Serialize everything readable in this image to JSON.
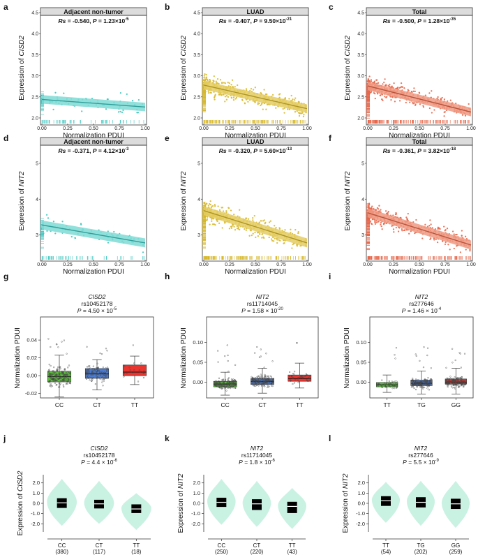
{
  "figure": {
    "title": ""
  },
  "colors": {
    "teal": "#3cc7c0",
    "teal_band": "#7fdad5",
    "gold": "#d8b92c",
    "gold_band": "#e4cc63",
    "salmon": "#e8674a",
    "salmon_band": "#ef9a82",
    "green_box": "#5bbf3c",
    "blue_box": "#4a7bd0",
    "red_box": "#e8352f",
    "violin": "#c9f2e3",
    "strip_bg": "#dcdcdc"
  },
  "chart_data": [
    {
      "id": "a",
      "panel_label": "a",
      "type": "scatter",
      "title": "Adjacent non-tumor",
      "stat": "Rs = -0.540, P = 1.23×10-5",
      "xlabel": "Normalization PDUI",
      "ylabel": "Expression of CISD2",
      "xlim": [
        0,
        1
      ],
      "ylim": [
        1.9,
        4.6
      ],
      "xticks": [
        "0.00",
        "0.25",
        "0.50",
        "0.75",
        "1.00"
      ],
      "yticks": [
        "2.0",
        "2.5",
        "3.0",
        "3.5",
        "4.0",
        "4.5"
      ],
      "n_points": 58,
      "trend": {
        "x": [
          0,
          1
        ],
        "y": [
          2.44,
          2.26
        ]
      },
      "color": "teal"
    },
    {
      "id": "b",
      "panel_label": "b",
      "type": "scatter",
      "title": "LUAD",
      "stat": "Rs = -0.407, P = 9.50×10-21",
      "xlabel": "Normalization PDUI",
      "ylabel": "Expression of CISD2",
      "xlim": [
        0,
        1
      ],
      "ylim": [
        1.9,
        4.6
      ],
      "xticks": [
        "0.00",
        "0.25",
        "0.50",
        "0.75",
        "1.00"
      ],
      "yticks": [
        "2.0",
        "2.5",
        "3.0",
        "3.5",
        "4.0",
        "4.5"
      ],
      "n_points": 515,
      "trend": {
        "x": [
          0,
          1
        ],
        "y": [
          2.78,
          2.22
        ]
      },
      "color": "gold"
    },
    {
      "id": "c",
      "panel_label": "c",
      "type": "scatter",
      "title": "Total",
      "stat": "Rs = -0.500, P = 1.28×10-35",
      "xlabel": "Normalization PDUI",
      "ylabel": "Expression of CISD2",
      "xlim": [
        0,
        1
      ],
      "ylim": [
        1.9,
        4.6
      ],
      "xticks": [
        "0.00",
        "0.25",
        "0.50",
        "0.75",
        "1.00"
      ],
      "yticks": [
        "2.0",
        "2.5",
        "3.0",
        "3.5",
        "4.0",
        "4.5"
      ],
      "n_points": 573,
      "trend": {
        "x": [
          0,
          1
        ],
        "y": [
          2.76,
          2.14
        ]
      },
      "color": "salmon"
    },
    {
      "id": "d",
      "panel_label": "d",
      "type": "scatter",
      "title": "Adjacent non-tumor",
      "stat": "Rs = -0.371, P = 4.12×10-3",
      "xlabel": "Normalization PDUI",
      "ylabel": "Expression of NIT2",
      "xlim": [
        0,
        1
      ],
      "ylim": [
        2.35,
        5.7
      ],
      "xticks": [
        "0.00",
        "0.25",
        "0.50",
        "0.75",
        "1.00"
      ],
      "yticks": [
        "3",
        "4",
        "5"
      ],
      "n_points": 58,
      "trend": {
        "x": [
          0,
          1
        ],
        "y": [
          3.28,
          2.78
        ]
      },
      "color": "teal"
    },
    {
      "id": "e",
      "panel_label": "e",
      "type": "scatter",
      "title": "LUAD",
      "stat": "Rs = -0.320, P = 5.60×10-13",
      "xlabel": "Normalization PDUI",
      "ylabel": "Expression of NIT2",
      "xlim": [
        0,
        1
      ],
      "ylim": [
        2.35,
        5.7
      ],
      "xticks": [
        "0.00",
        "0.25",
        "0.50",
        "0.75",
        "1.00"
      ],
      "yticks": [
        "3",
        "4",
        "5"
      ],
      "n_points": 515,
      "trend": {
        "x": [
          0,
          1
        ],
        "y": [
          3.68,
          2.78
        ]
      },
      "color": "gold"
    },
    {
      "id": "f",
      "panel_label": "f",
      "type": "scatter",
      "title": "Total",
      "stat": "Rs = -0.361, P = 3.82×10-18",
      "xlabel": "Normalization PDUI",
      "ylabel": "Expression of NIT2",
      "xlim": [
        0,
        1
      ],
      "ylim": [
        2.35,
        5.7
      ],
      "xticks": [
        "0.00",
        "0.25",
        "0.50",
        "0.75",
        "1.00"
      ],
      "yticks": [
        "3",
        "4",
        "5"
      ],
      "n_points": 573,
      "trend": {
        "x": [
          0,
          1
        ],
        "y": [
          3.62,
          2.72
        ]
      },
      "color": "salmon"
    },
    {
      "id": "g",
      "panel_label": "g",
      "type": "box",
      "gene": "CISD2",
      "snp": "rs10452178",
      "pval": "P = 4.50 × 10-5",
      "ylabel": "Normalization PDUI",
      "ylim": [
        -0.025,
        0.055
      ],
      "yticks": [
        "-0.02",
        "0.00",
        "0.02",
        "0.04"
      ],
      "ytick_values": [
        -0.02,
        0,
        0.02,
        0.04
      ],
      "categories": [
        "CC",
        "CT",
        "TT"
      ],
      "boxes": [
        {
          "q1": -0.007,
          "median": -0.001,
          "q3": 0.005,
          "lo": -0.024,
          "hi": 0.023,
          "n": 220,
          "color": "green_box"
        },
        {
          "q1": -0.003,
          "median": 0.002,
          "q3": 0.008,
          "lo": -0.016,
          "hi": 0.018,
          "n": 110,
          "color": "blue_box"
        },
        {
          "q1": 0.0,
          "median": 0.004,
          "q3": 0.012,
          "lo": -0.01,
          "hi": 0.022,
          "n": 18,
          "color": "red_box"
        }
      ]
    },
    {
      "id": "h",
      "panel_label": "h",
      "type": "box",
      "gene": "NIT2",
      "snp": "rs11714045",
      "pval": "P = 1.58 × 10-20",
      "ylabel": "Normalization PDUI",
      "ylim": [
        -0.04,
        0.14
      ],
      "yticks": [
        "0.00",
        "0.05",
        "0.10"
      ],
      "ytick_values": [
        0,
        0.05,
        0.1
      ],
      "categories": [
        "CC",
        "CT",
        "TT"
      ],
      "boxes": [
        {
          "q1": -0.012,
          "median": -0.005,
          "q3": 0.002,
          "lo": -0.033,
          "hi": 0.025,
          "n": 230,
          "color": "green_box"
        },
        {
          "q1": -0.006,
          "median": 0.002,
          "q3": 0.009,
          "lo": -0.028,
          "hi": 0.035,
          "n": 200,
          "color": "blue_box"
        },
        {
          "q1": 0.002,
          "median": 0.009,
          "q3": 0.018,
          "lo": -0.015,
          "hi": 0.048,
          "n": 43,
          "color": "red_box"
        }
      ]
    },
    {
      "id": "i",
      "panel_label": "i",
      "type": "box",
      "gene": "NIT2",
      "snp": "rs277646",
      "pval": "P = 1.46 × 10-4",
      "ylabel": "Normalization PDUI",
      "ylim": [
        -0.04,
        0.14
      ],
      "yticks": [
        "0.00",
        "0.05",
        "0.10"
      ],
      "ytick_values": [
        0,
        0.05,
        0.1
      ],
      "categories": [
        "TT",
        "TG",
        "GG"
      ],
      "boxes": [
        {
          "q1": -0.012,
          "median": -0.007,
          "q3": -0.001,
          "lo": -0.026,
          "hi": 0.018,
          "n": 54,
          "color": "green_box"
        },
        {
          "q1": -0.009,
          "median": -0.003,
          "q3": 0.005,
          "lo": -0.03,
          "hi": 0.028,
          "n": 190,
          "color": "blue_box"
        },
        {
          "q1": -0.005,
          "median": 0.0,
          "q3": 0.008,
          "lo": -0.03,
          "hi": 0.035,
          "n": 240,
          "color": "red_box"
        }
      ]
    },
    {
      "id": "j",
      "panel_label": "j",
      "type": "violin",
      "gene": "CISD2",
      "snp": "rs10452178",
      "pval": "P = 4.4 × 10-6",
      "ylabel": "Expression of CISD2",
      "ylim": [
        -2.8,
        2.8
      ],
      "yticks": [
        "2.0",
        "1.0",
        "0.0",
        "-1.0",
        "-2.0"
      ],
      "ytick_values": [
        2,
        1,
        0,
        -1,
        -2
      ],
      "categories": [
        "CC",
        "CT",
        "TT"
      ],
      "counts": [
        "(380)",
        "(117)",
        "(18)"
      ],
      "violins": [
        {
          "top": 2.4,
          "bottom": -2.2,
          "q1": -0.45,
          "median": 0.05,
          "q3": 0.5
        },
        {
          "top": 2.2,
          "bottom": -2.0,
          "q1": -0.5,
          "median": -0.05,
          "q3": 0.35
        },
        {
          "top": 1.0,
          "bottom": -2.6,
          "q1": -0.95,
          "median": -0.55,
          "q3": -0.1
        }
      ]
    },
    {
      "id": "k",
      "panel_label": "k",
      "type": "violin",
      "gene": "NIT2",
      "snp": "rs11714045",
      "pval": "P = 1.8 × 10-6",
      "ylabel": "Expression of NIT2",
      "ylim": [
        -2.8,
        2.8
      ],
      "yticks": [
        "2.0",
        "1.0",
        "0.0",
        "-1.0",
        "-2.0"
      ],
      "ytick_values": [
        2,
        1,
        0,
        -1,
        -2
      ],
      "categories": [
        "CC",
        "CT",
        "TT"
      ],
      "counts": [
        "(250)",
        "(220)",
        "(43)"
      ],
      "violins": [
        {
          "top": 2.4,
          "bottom": -2.1,
          "q1": -0.35,
          "median": 0.1,
          "q3": 0.55
        },
        {
          "top": 2.2,
          "bottom": -2.3,
          "q1": -0.65,
          "median": -0.05,
          "q3": 0.4
        },
        {
          "top": 1.5,
          "bottom": -2.5,
          "q1": -0.95,
          "median": -0.3,
          "q3": 0.15
        }
      ]
    },
    {
      "id": "l",
      "panel_label": "l",
      "type": "violin",
      "gene": "NIT2",
      "snp": "rs277646",
      "pval": "P = 5.5 × 10-9",
      "ylabel": "Expression of NIT2",
      "ylim": [
        -2.8,
        2.8
      ],
      "yticks": [
        "2.0",
        "1.0",
        "0.0",
        "-1.0",
        "-2.0"
      ],
      "ytick_values": [
        2,
        1,
        0,
        -1,
        -2
      ],
      "categories": [
        "TT",
        "TG",
        "GG"
      ],
      "counts": [
        "(54)",
        "(202)",
        "(259)"
      ],
      "violins": [
        {
          "top": 2.1,
          "bottom": -1.9,
          "q1": -0.25,
          "median": 0.25,
          "q3": 0.7
        },
        {
          "top": 2.2,
          "bottom": -2.2,
          "q1": -0.4,
          "median": 0.1,
          "q3": 0.6
        },
        {
          "top": 2.2,
          "bottom": -2.4,
          "q1": -0.55,
          "median": -0.05,
          "q3": 0.45
        }
      ]
    }
  ]
}
